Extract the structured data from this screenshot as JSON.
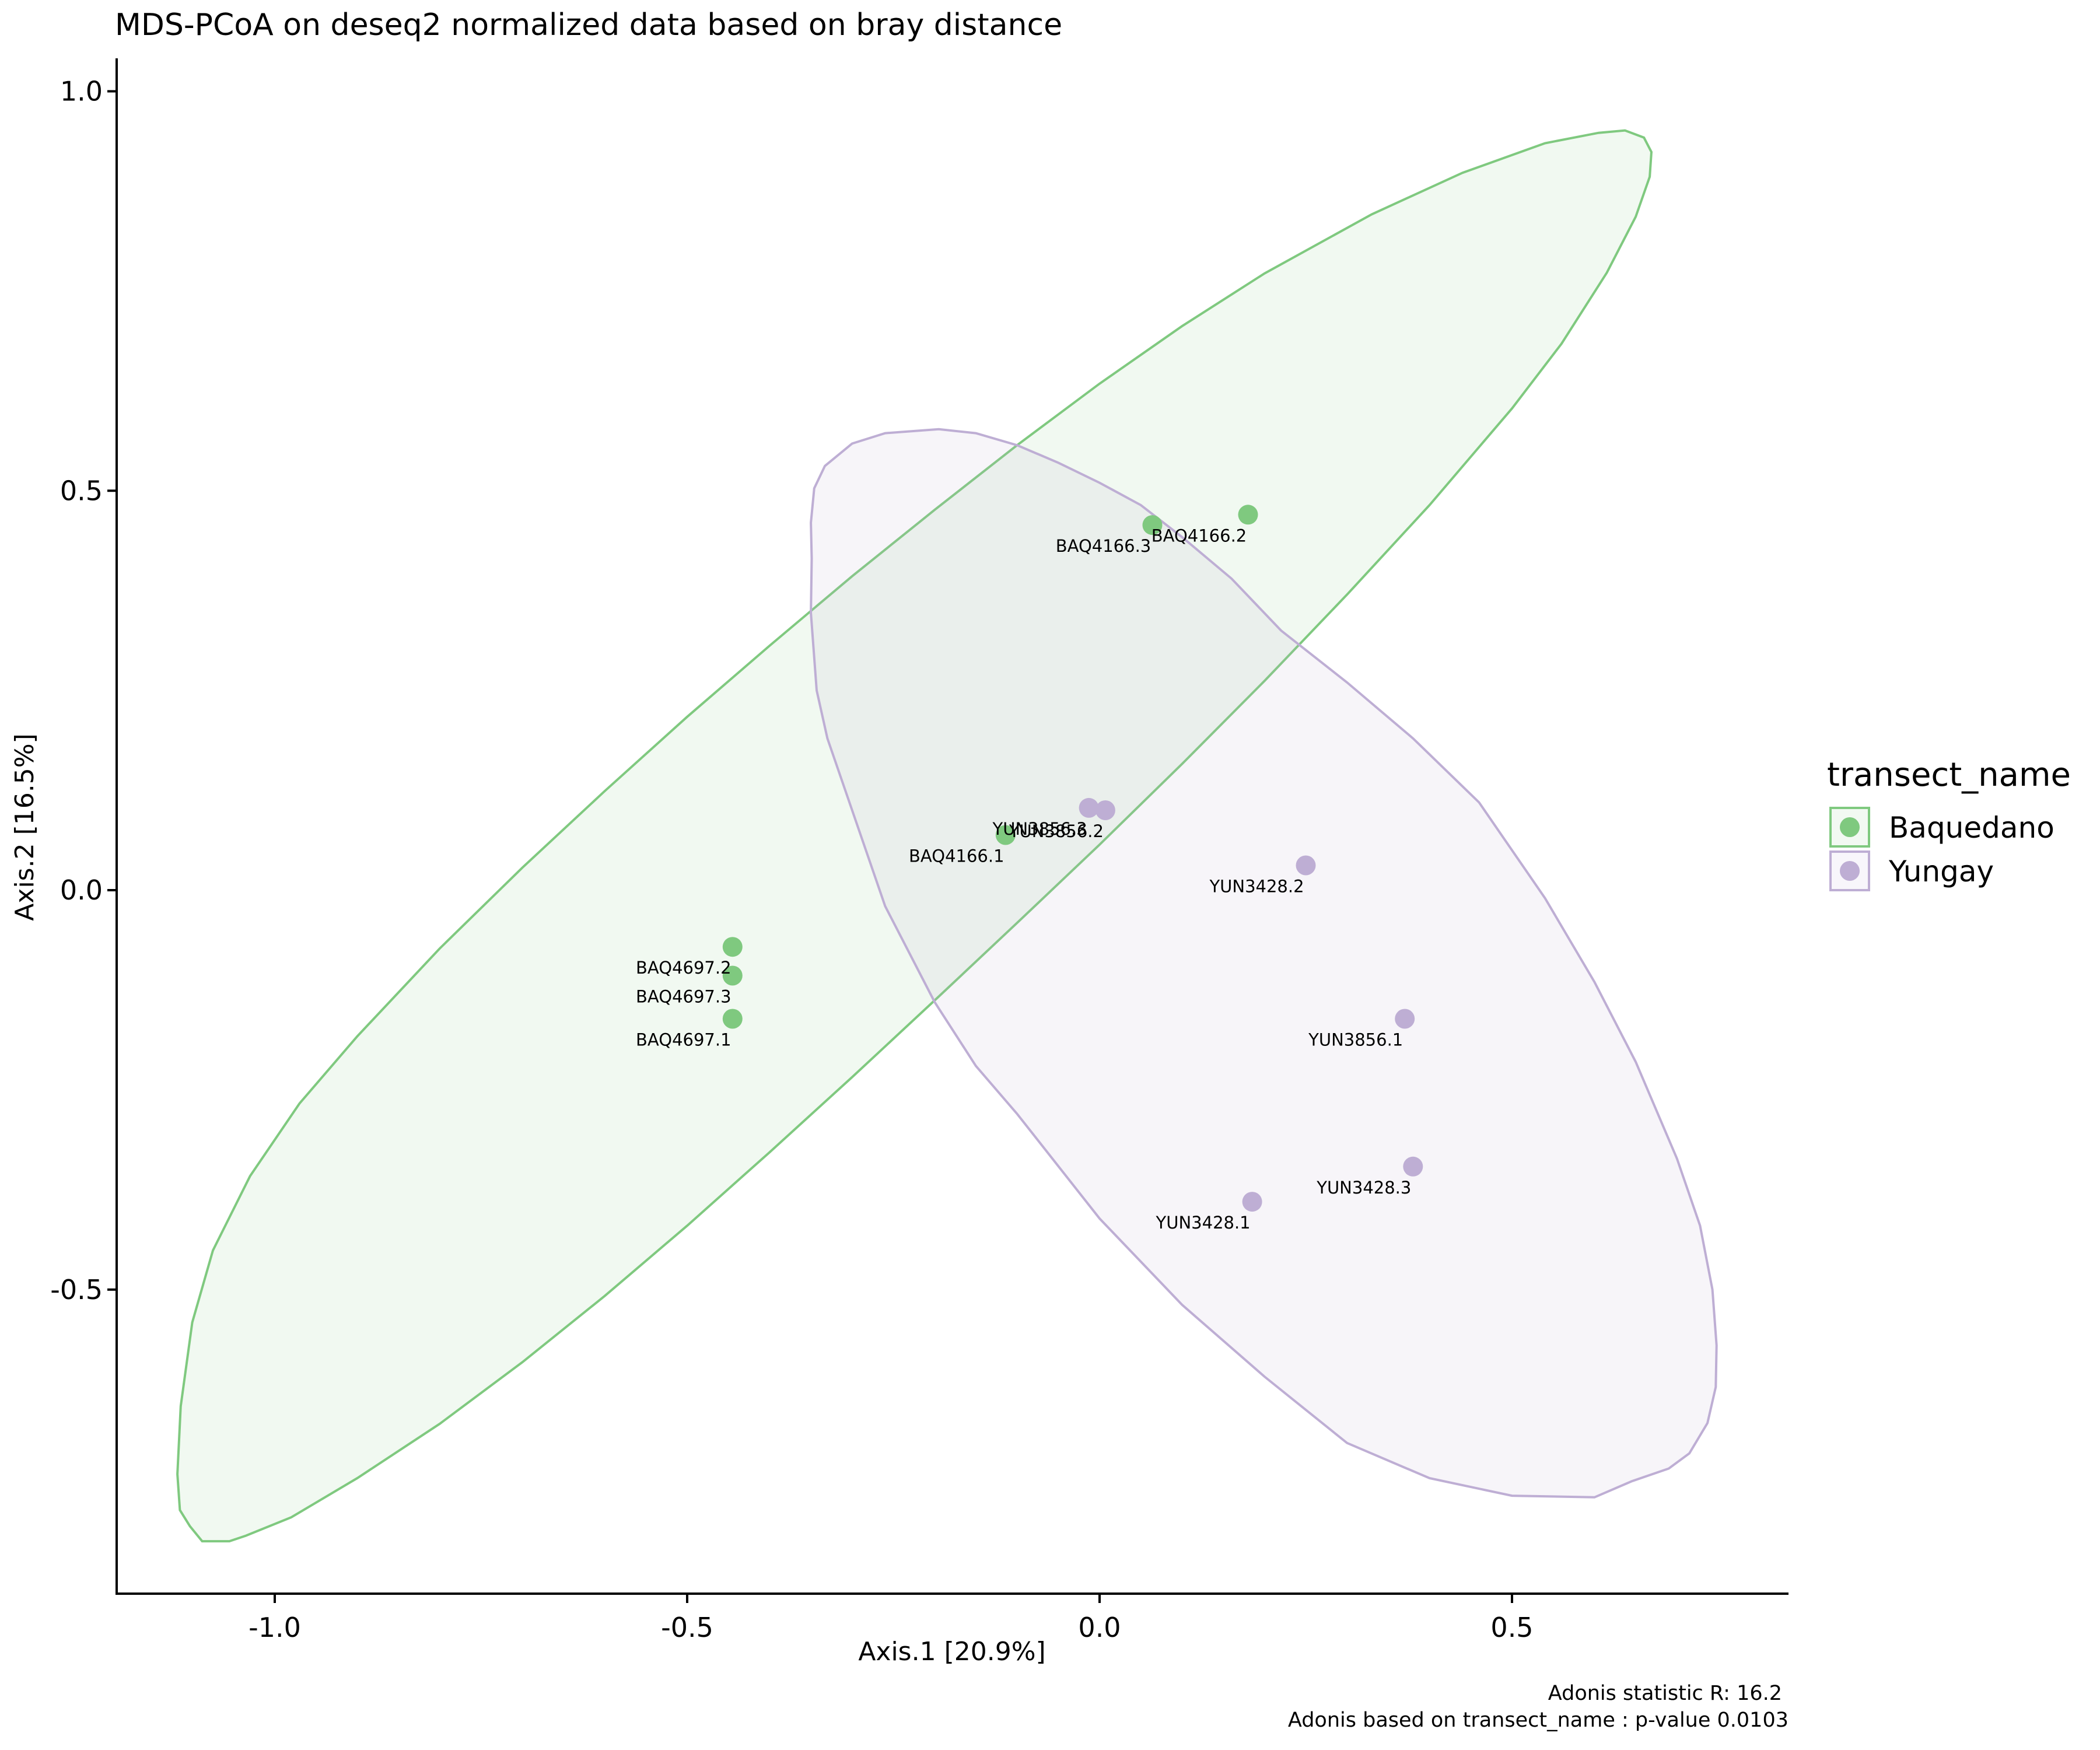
{
  "chart_data": {
    "type": "scatter",
    "title": "MDS-PCoA on deseq2 normalized data based on bray distance",
    "xlabel": "Axis.1   [20.9%]",
    "ylabel": "Axis.2   [16.5%]",
    "xlim": [
      -1.2,
      0.85
    ],
    "ylim": [
      -0.88,
      1.04
    ],
    "xticks": [
      -1.0,
      -0.5,
      0.0,
      0.5
    ],
    "xtick_labels": [
      "-1.0",
      "-0.5",
      "0.0",
      "0.5"
    ],
    "yticks": [
      -0.5,
      0.0,
      0.5,
      1.0
    ],
    "ytick_labels": [
      "-0.5",
      "0.0",
      "0.5",
      "1.0"
    ],
    "grid": false,
    "legend": {
      "title": "transect_name",
      "placement": "right",
      "entries": [
        "Baquedano",
        "Yungay"
      ]
    },
    "colors": {
      "Baquedano": "#7fc97f",
      "Yungay": "#beaed4"
    },
    "series": [
      {
        "name": "Baquedano",
        "points": [
          {
            "label": "BAQ4166.2",
            "x": 0.18,
            "y": 0.47
          },
          {
            "label": "BAQ4166.3",
            "x": 0.064,
            "y": 0.457
          },
          {
            "label": "BAQ4166.1",
            "x": -0.114,
            "y": 0.069
          },
          {
            "label": "BAQ4697.2",
            "x": -0.445,
            "y": -0.071
          },
          {
            "label": "BAQ4697.3",
            "x": -0.445,
            "y": -0.107
          },
          {
            "label": "BAQ4697.1",
            "x": -0.445,
            "y": -0.161
          }
        ],
        "ellipse": [
          [
            -1.103,
            -0.796
          ],
          [
            -1.088,
            -0.815
          ],
          [
            -1.055,
            -0.815
          ],
          [
            -1.035,
            -0.808
          ],
          [
            -0.98,
            -0.785
          ],
          [
            -0.9,
            -0.736
          ],
          [
            -0.8,
            -0.668
          ],
          [
            -0.7,
            -0.591
          ],
          [
            -0.6,
            -0.508
          ],
          [
            -0.5,
            -0.42
          ],
          [
            -0.4,
            -0.328
          ],
          [
            -0.3,
            -0.234
          ],
          [
            -0.2,
            -0.138
          ],
          [
            -0.1,
            -0.041
          ],
          [
            0.0,
            0.057
          ],
          [
            0.1,
            0.158
          ],
          [
            0.2,
            0.262
          ],
          [
            0.3,
            0.37
          ],
          [
            0.4,
            0.482
          ],
          [
            0.5,
            0.603
          ],
          [
            0.56,
            0.684
          ],
          [
            0.615,
            0.773
          ],
          [
            0.65,
            0.843
          ],
          [
            0.667,
            0.893
          ],
          [
            0.669,
            0.924
          ],
          [
            0.66,
            0.942
          ],
          [
            0.637,
            0.951
          ],
          [
            0.605,
            0.948
          ],
          [
            0.54,
            0.935
          ],
          [
            0.44,
            0.898
          ],
          [
            0.33,
            0.846
          ],
          [
            0.2,
            0.772
          ],
          [
            0.1,
            0.706
          ],
          [
            0.0,
            0.634
          ],
          [
            -0.1,
            0.557
          ],
          [
            -0.2,
            0.476
          ],
          [
            -0.3,
            0.393
          ],
          [
            -0.4,
            0.306
          ],
          [
            -0.5,
            0.217
          ],
          [
            -0.6,
            0.124
          ],
          [
            -0.7,
            0.028
          ],
          [
            -0.8,
            -0.073
          ],
          [
            -0.9,
            -0.183
          ],
          [
            -0.97,
            -0.267
          ],
          [
            -1.03,
            -0.358
          ],
          [
            -1.075,
            -0.451
          ],
          [
            -1.1,
            -0.541
          ],
          [
            -1.114,
            -0.646
          ],
          [
            -1.118,
            -0.731
          ],
          [
            -1.115,
            -0.776
          ]
        ]
      },
      {
        "name": "Yungay",
        "points": [
          {
            "label": "YUN3856.3",
            "x": -0.013,
            "y": 0.103
          },
          {
            "label": "YUN3856.2",
            "x": 0.007,
            "y": 0.1
          },
          {
            "label": "YUN3428.2",
            "x": 0.25,
            "y": 0.031
          },
          {
            "label": "YUN3856.1",
            "x": 0.37,
            "y": -0.161
          },
          {
            "label": "YUN3428.3",
            "x": 0.38,
            "y": -0.346
          },
          {
            "label": "YUN3428.1",
            "x": 0.185,
            "y": -0.39
          }
        ],
        "ellipse": [
          [
            -0.346,
            0.503
          ],
          [
            -0.333,
            0.531
          ],
          [
            -0.3,
            0.559
          ],
          [
            -0.26,
            0.572
          ],
          [
            -0.195,
            0.577
          ],
          [
            -0.15,
            0.572
          ],
          [
            -0.1,
            0.557
          ],
          [
            -0.05,
            0.535
          ],
          [
            0.0,
            0.51
          ],
          [
            0.05,
            0.482
          ],
          [
            0.1,
            0.442
          ],
          [
            0.16,
            0.39
          ],
          [
            0.22,
            0.325
          ],
          [
            0.3,
            0.26
          ],
          [
            0.38,
            0.19
          ],
          [
            0.46,
            0.11
          ],
          [
            0.54,
            -0.01
          ],
          [
            0.6,
            -0.115
          ],
          [
            0.65,
            -0.215
          ],
          [
            0.7,
            -0.336
          ],
          [
            0.728,
            -0.42
          ],
          [
            0.743,
            -0.5
          ],
          [
            0.748,
            -0.57
          ],
          [
            0.747,
            -0.622
          ],
          [
            0.737,
            -0.667
          ],
          [
            0.715,
            -0.705
          ],
          [
            0.69,
            -0.724
          ],
          [
            0.645,
            -0.74
          ],
          [
            0.6,
            -0.76
          ],
          [
            0.5,
            -0.758
          ],
          [
            0.4,
            -0.736
          ],
          [
            0.3,
            -0.692
          ],
          [
            0.2,
            -0.609
          ],
          [
            0.1,
            -0.519
          ],
          [
            0.0,
            -0.411
          ],
          [
            -0.1,
            -0.28
          ],
          [
            -0.15,
            -0.22
          ],
          [
            -0.2,
            -0.14
          ],
          [
            -0.26,
            -0.02
          ],
          [
            -0.3,
            0.1
          ],
          [
            -0.33,
            0.19
          ],
          [
            -0.343,
            0.25
          ],
          [
            -0.35,
            0.347
          ],
          [
            -0.349,
            0.415
          ],
          [
            -0.35,
            0.46
          ]
        ]
      }
    ],
    "annotations": [
      "Adonis statistic R: 16.2",
      "Adonis based on  transect_name : p-value 0.0103"
    ]
  }
}
